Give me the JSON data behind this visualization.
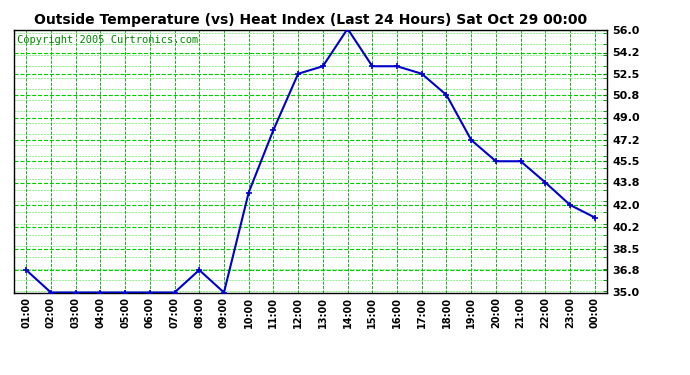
{
  "title": "Outside Temperature (vs) Heat Index (Last 24 Hours) Sat Oct 29 00:00",
  "copyright_text": "Copyright 2005 Curtronics.com",
  "x_labels": [
    "01:00",
    "02:00",
    "03:00",
    "04:00",
    "05:00",
    "06:00",
    "07:00",
    "08:00",
    "09:00",
    "10:00",
    "11:00",
    "12:00",
    "13:00",
    "14:00",
    "15:00",
    "16:00",
    "17:00",
    "18:00",
    "19:00",
    "20:00",
    "21:00",
    "22:00",
    "23:00",
    "00:00"
  ],
  "y_values": [
    36.8,
    35.0,
    35.0,
    35.0,
    35.0,
    35.0,
    35.0,
    36.8,
    35.0,
    43.0,
    48.0,
    52.5,
    53.1,
    56.1,
    53.1,
    53.1,
    52.5,
    50.8,
    47.2,
    45.5,
    45.5,
    43.8,
    42.0,
    41.0
  ],
  "line_color": "#0000cc",
  "marker": "+",
  "marker_color": "#0000cc",
  "plot_bg_color": "#ffffff",
  "grid_color_h": "#00cc00",
  "grid_color_v": "#009900",
  "title_fontsize": 10,
  "title_fontweight": "bold",
  "copyright_color": "#008800",
  "copyright_fontsize": 7.5,
  "y_tick_values": [
    35.0,
    36.8,
    38.5,
    40.2,
    42.0,
    43.8,
    45.5,
    47.2,
    49.0,
    50.8,
    52.5,
    54.2,
    56.0
  ],
  "ylim": [
    35.0,
    56.0
  ],
  "tick_label_fontsize": 8,
  "x_tick_fontsize": 7
}
